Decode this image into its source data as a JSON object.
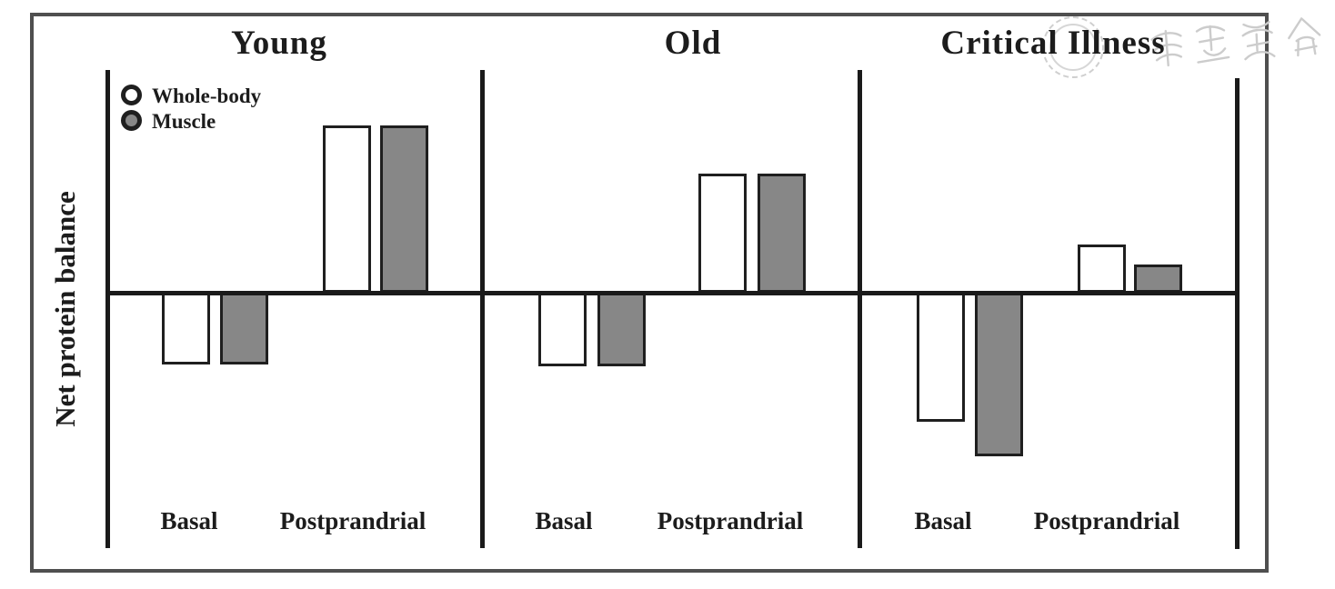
{
  "chart_data": {
    "type": "bar",
    "title": "",
    "ylabel": "Net protein balance",
    "xlabel": "",
    "units": "relative units; figure shows no numeric axis scale (values estimated, Young postprandial = 100)",
    "baseline": 0,
    "ylim": [
      -110,
      110
    ],
    "grid": false,
    "legend_position": "top-left inside first panel",
    "legend": [
      {
        "name": "Whole-body",
        "fill": "#ffffff"
      },
      {
        "name": "Muscle",
        "fill": "#878787"
      }
    ],
    "panels": [
      {
        "title": "Young",
        "categories": [
          "Basal",
          "Postprandrial"
        ],
        "series": [
          {
            "name": "Whole-body",
            "values": [
              -43,
              100
            ]
          },
          {
            "name": "Muscle",
            "values": [
              -43,
              100
            ]
          }
        ]
      },
      {
        "title": "Old",
        "categories": [
          "Basal",
          "Postprandrial"
        ],
        "series": [
          {
            "name": "Whole-body",
            "values": [
              -44,
              71
            ]
          },
          {
            "name": "Muscle",
            "values": [
              -44,
              71
            ]
          }
        ]
      },
      {
        "title": "Critical Illness",
        "categories": [
          "Basal",
          "Postprandrial"
        ],
        "series": [
          {
            "name": "Whole-body",
            "values": [
              -77,
              29
            ]
          },
          {
            "name": "Muscle",
            "values": [
              -98,
              17
            ]
          }
        ]
      }
    ]
  },
  "watermark": {
    "seal": "circular light-gray stamp overlapping the Critical Illness title",
    "text": "营养学会",
    "color": "#cccccc"
  },
  "colors": {
    "whole_body_fill": "#ffffff",
    "muscle_fill": "#878787",
    "bar_outline": "#1f1f1f",
    "axis": "#1a1a1a",
    "frame_border": "#4f4f4f",
    "background": "#ffffff",
    "text": "#1c1c1c"
  }
}
